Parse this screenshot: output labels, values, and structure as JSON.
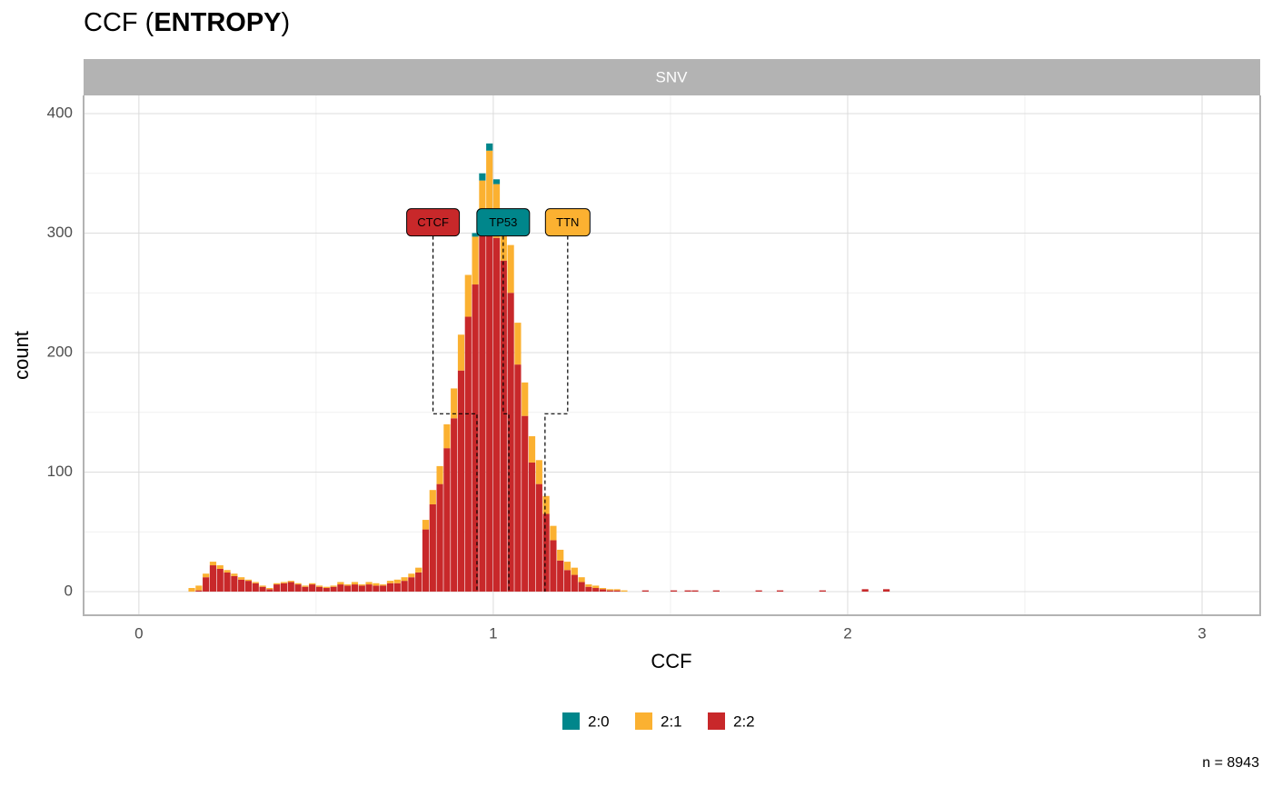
{
  "chart_data": {
    "type": "histogram",
    "title": "CCF (ENTROPY)",
    "title_plain": "CCF (",
    "title_bold": "ENTROPY",
    "title_end": ")",
    "facet": "SNV",
    "xlabel": "CCF",
    "ylabel": "count",
    "caption": "n = 8943",
    "xlim": [
      -0.156,
      3.164
    ],
    "ylim": [
      -19.8,
      415.2
    ],
    "xticks": [
      0,
      1,
      2,
      3
    ],
    "yticks": [
      0,
      100,
      200,
      300,
      400
    ],
    "grid": true,
    "legend": "bottom",
    "bins": [
      0.14,
      0.16,
      0.18,
      0.2,
      0.22,
      0.24,
      0.26,
      0.28,
      0.3,
      0.32,
      0.34,
      0.36,
      0.38,
      0.4,
      0.42,
      0.44,
      0.46,
      0.48,
      0.5,
      0.52,
      0.54,
      0.56,
      0.58,
      0.6,
      0.62,
      0.64,
      0.66,
      0.68,
      0.7,
      0.72,
      0.74,
      0.76,
      0.78,
      0.8,
      0.82,
      0.84,
      0.86,
      0.88,
      0.9,
      0.92,
      0.94,
      0.96,
      0.98,
      1.0,
      1.02,
      1.04,
      1.06,
      1.08,
      1.1,
      1.12,
      1.14,
      1.16,
      1.18,
      1.2,
      1.22,
      1.24,
      1.26,
      1.28,
      1.3,
      1.32,
      1.34,
      1.36,
      1.38,
      1.4,
      1.42,
      1.44,
      1.46,
      1.48,
      1.5,
      1.52,
      1.54,
      1.56,
      1.58,
      1.6,
      1.62,
      1.64,
      1.66,
      1.68,
      1.7,
      1.72,
      1.74,
      1.76,
      1.78,
      1.8,
      1.82,
      1.84,
      1.86,
      1.88,
      1.9,
      1.92,
      1.94,
      1.96,
      1.98,
      2.0,
      2.02,
      2.04,
      2.06,
      2.08,
      2.1,
      2.12,
      2.14
    ],
    "series": [
      {
        "name": "2:0",
        "color": "#00868b",
        "values": [
          0,
          0,
          0,
          0,
          0,
          0,
          0,
          0,
          0,
          0,
          0,
          0,
          0,
          0,
          0,
          0,
          0,
          0,
          0,
          0,
          0,
          0,
          0,
          0,
          0,
          0,
          0,
          0,
          0,
          0,
          0,
          0,
          0,
          0,
          0,
          0,
          0,
          0,
          0,
          0,
          3,
          6,
          6,
          4,
          3,
          0,
          0,
          0,
          0,
          0,
          0,
          0,
          0,
          0,
          0,
          0,
          0,
          0,
          0,
          0,
          0,
          0,
          0,
          0,
          0,
          0,
          0,
          0,
          0,
          0,
          0,
          0,
          0,
          0,
          0,
          0,
          0,
          0,
          0,
          0,
          0,
          0,
          0,
          0,
          0,
          0,
          0,
          0,
          0,
          0,
          0,
          0,
          0,
          0,
          0,
          0,
          0,
          0,
          0,
          0
        ]
      },
      {
        "name": "2:1",
        "color": "#fbb131",
        "values": [
          3,
          4,
          3,
          3,
          3,
          2,
          2,
          2,
          1,
          1,
          1,
          1,
          1,
          1,
          1,
          1,
          1,
          1,
          1,
          1,
          1,
          2,
          1,
          2,
          1,
          2,
          2,
          1,
          2,
          3,
          3,
          3,
          4,
          8,
          12,
          15,
          20,
          25,
          30,
          35,
          40,
          45,
          50,
          45,
          40,
          40,
          35,
          28,
          22,
          20,
          15,
          12,
          9,
          7,
          6,
          4,
          2,
          2,
          1,
          1,
          1,
          1,
          0,
          0,
          0,
          0,
          0,
          0,
          0,
          0,
          0,
          0,
          0,
          0,
          0,
          0,
          0,
          0,
          0,
          0,
          0,
          0,
          0,
          0,
          0,
          0,
          0,
          0,
          0,
          0,
          0,
          0,
          0,
          0,
          0,
          0,
          0,
          0,
          0,
          0
        ]
      },
      {
        "name": "2:2",
        "color": "#c8282a",
        "values": [
          0,
          1,
          12,
          22,
          19,
          16,
          13,
          10,
          9,
          7,
          4,
          2,
          6,
          7,
          8,
          6,
          4,
          6,
          4,
          3,
          4,
          6,
          5,
          6,
          5,
          6,
          5,
          5,
          7,
          7,
          9,
          12,
          16,
          52,
          73,
          90,
          120,
          145,
          185,
          230,
          257,
          299,
          319,
          296,
          277,
          250,
          190,
          147,
          108,
          90,
          65,
          43,
          26,
          18,
          14,
          8,
          4,
          3,
          2,
          1,
          1,
          0,
          0,
          0,
          1,
          0,
          0,
          0,
          1,
          0,
          1,
          1,
          0,
          0,
          1,
          0,
          0,
          0,
          0,
          0,
          1,
          0,
          0,
          1,
          0,
          0,
          0,
          0,
          0,
          1,
          0,
          0,
          0,
          0,
          0,
          2,
          0,
          0,
          2,
          0
        ]
      }
    ],
    "annotations": [
      {
        "label": "CTCF",
        "color": "#c8282a",
        "x": 0.83,
        "y": 309,
        "target": [
          0.954,
          0
        ]
      },
      {
        "label": "TP53",
        "color": "#00868b",
        "x": 1.028,
        "y": 309,
        "target": [
          1.044,
          0
        ]
      },
      {
        "label": "TTN",
        "color": "#fbb131",
        "x": 1.21,
        "y": 309,
        "target": [
          1.146,
          0
        ]
      }
    ]
  }
}
